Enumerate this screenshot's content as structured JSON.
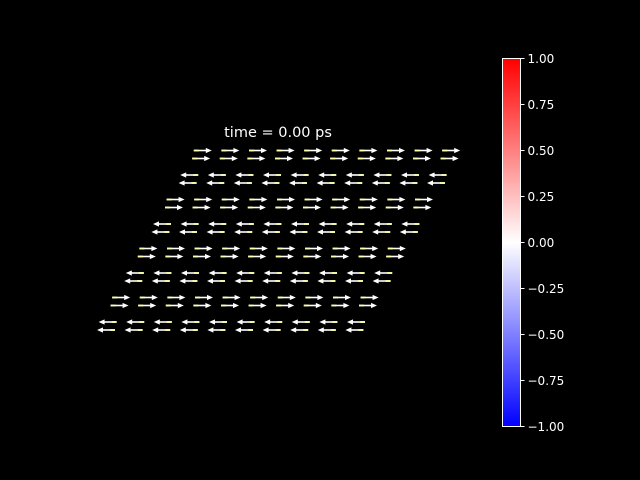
{
  "chart_data": {
    "type": "quiver",
    "title": "time = 0.00 ps",
    "lattice": {
      "rows": 8,
      "columns": 10,
      "sublattices": 2,
      "in_plane_direction_by_row": [
        -1,
        1,
        -1,
        1,
        -1,
        1,
        -1,
        1
      ],
      "out_of_plane_component": 0.0
    },
    "colorbar": {
      "ticks": [
        "1.00",
        "0.75",
        "0.50",
        "0.25",
        "0.00",
        "−0.25",
        "−0.50",
        "−0.75",
        "−1.00"
      ],
      "range": [
        -1.0,
        1.0
      ],
      "colormap": "bwr",
      "colors": {
        "low": "#0000ff",
        "mid": "#ffffff",
        "high": "#ff0000"
      }
    },
    "arrow_colors": {
      "body": "#ffffff",
      "tail": "#ffffa8"
    },
    "background": "#000000"
  }
}
